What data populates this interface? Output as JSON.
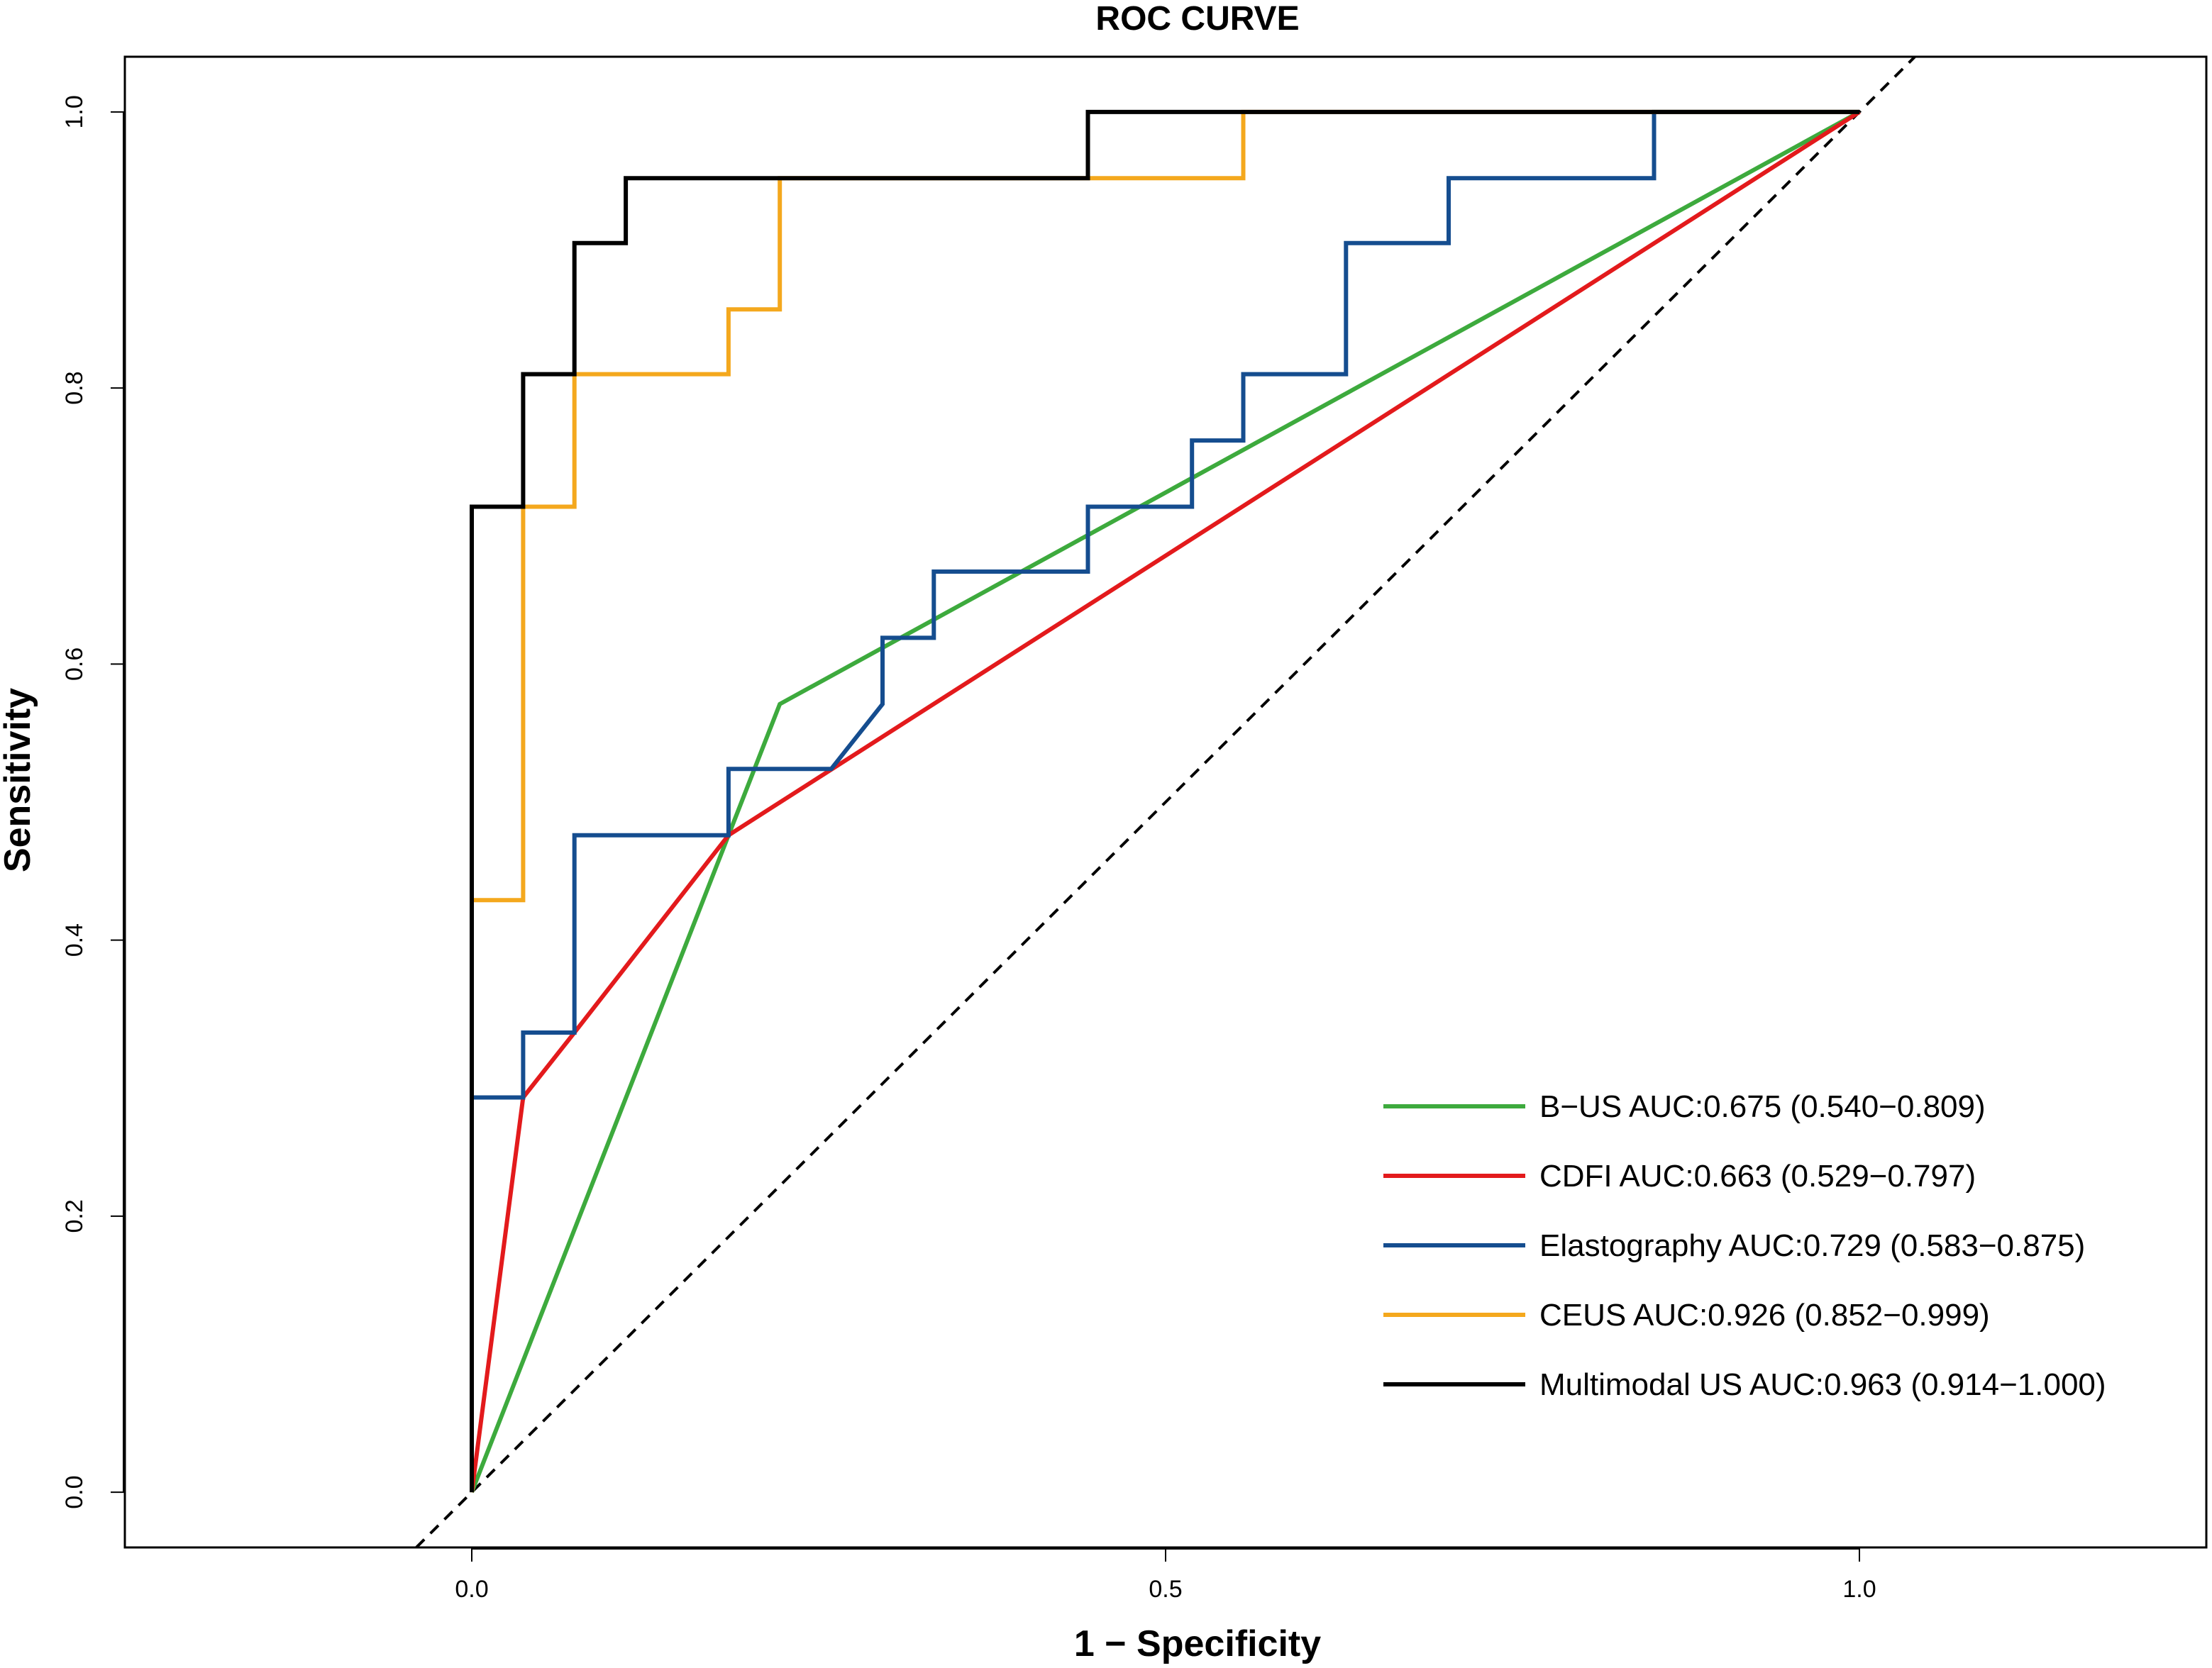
{
  "chart_data": {
    "type": "line",
    "title": "ROC CURVE",
    "xlabel": "1 − Specificity",
    "ylabel": "Sensitivity",
    "xlim": [
      -0.25,
      1.25
    ],
    "ylim": [
      -0.04,
      1.04
    ],
    "x_ticks": [
      {
        "value": 0.0,
        "label": "0.0"
      },
      {
        "value": 0.5,
        "label": "0.5"
      },
      {
        "value": 1.0,
        "label": "1.0"
      }
    ],
    "y_ticks": [
      {
        "value": 0.0,
        "label": "0.0"
      },
      {
        "value": 0.2,
        "label": "0.2"
      },
      {
        "value": 0.4,
        "label": "0.4"
      },
      {
        "value": 0.6,
        "label": "0.6"
      },
      {
        "value": 0.8,
        "label": "0.8"
      },
      {
        "value": 1.0,
        "label": "1.0"
      }
    ],
    "reference_line": {
      "name": "chance diagonal",
      "style": "dashed",
      "color": "#000000",
      "x": [
        -0.04,
        1.04
      ],
      "y": [
        -0.04,
        1.04
      ]
    },
    "legend_position": "bottom-right",
    "series": [
      {
        "name": "B-US",
        "legend": "B−US AUC:0.675 (0.540−0.809)",
        "color": "#3DAA3D",
        "x": [
          0.0,
          0.222,
          1.0
        ],
        "y": [
          0.0,
          0.571,
          1.0
        ]
      },
      {
        "name": "CDFI",
        "legend": "CDFI AUC:0.663 (0.529−0.797)",
        "color": "#E31A1C",
        "x": [
          0.0,
          0.037,
          0.074,
          0.185,
          1.0
        ],
        "y": [
          0.0,
          0.286,
          0.333,
          0.476,
          1.0
        ]
      },
      {
        "name": "Elastography",
        "legend": "Elastography AUC:0.729 (0.583−0.875)",
        "color": "#154D8F",
        "x": [
          0.0,
          0.0,
          0.037,
          0.037,
          0.074,
          0.074,
          0.185,
          0.185,
          0.259,
          0.296,
          0.296,
          0.333,
          0.333,
          0.444,
          0.444,
          0.519,
          0.519,
          0.556,
          0.556,
          0.63,
          0.63,
          0.704,
          0.704,
          0.852,
          0.852,
          1.0
        ],
        "y": [
          0.0,
          0.286,
          0.286,
          0.333,
          0.333,
          0.476,
          0.476,
          0.524,
          0.524,
          0.571,
          0.619,
          0.619,
          0.667,
          0.667,
          0.714,
          0.714,
          0.762,
          0.762,
          0.81,
          0.81,
          0.905,
          0.905,
          0.952,
          0.952,
          1.0,
          1.0
        ]
      },
      {
        "name": "CEUS",
        "legend": "CEUS AUC:0.926 (0.852−0.999)",
        "color": "#F4A81D",
        "x": [
          0.0,
          0.0,
          0.037,
          0.037,
          0.074,
          0.074,
          0.185,
          0.185,
          0.222,
          0.222,
          0.444,
          0.444,
          0.556,
          0.556,
          1.0
        ],
        "y": [
          0.0,
          0.429,
          0.429,
          0.714,
          0.714,
          0.81,
          0.81,
          0.857,
          0.857,
          0.952,
          0.952,
          0.952,
          0.952,
          1.0,
          1.0
        ]
      },
      {
        "name": "Multimodal US",
        "legend": "Multimodal US AUC:0.963 (0.914−1.000)",
        "color": "#000000",
        "x": [
          0.0,
          0.0,
          0.037,
          0.037,
          0.074,
          0.074,
          0.111,
          0.111,
          0.444,
          0.444,
          1.0
        ],
        "y": [
          0.0,
          0.714,
          0.714,
          0.81,
          0.81,
          0.905,
          0.905,
          0.952,
          0.952,
          1.0,
          1.0
        ]
      }
    ]
  }
}
